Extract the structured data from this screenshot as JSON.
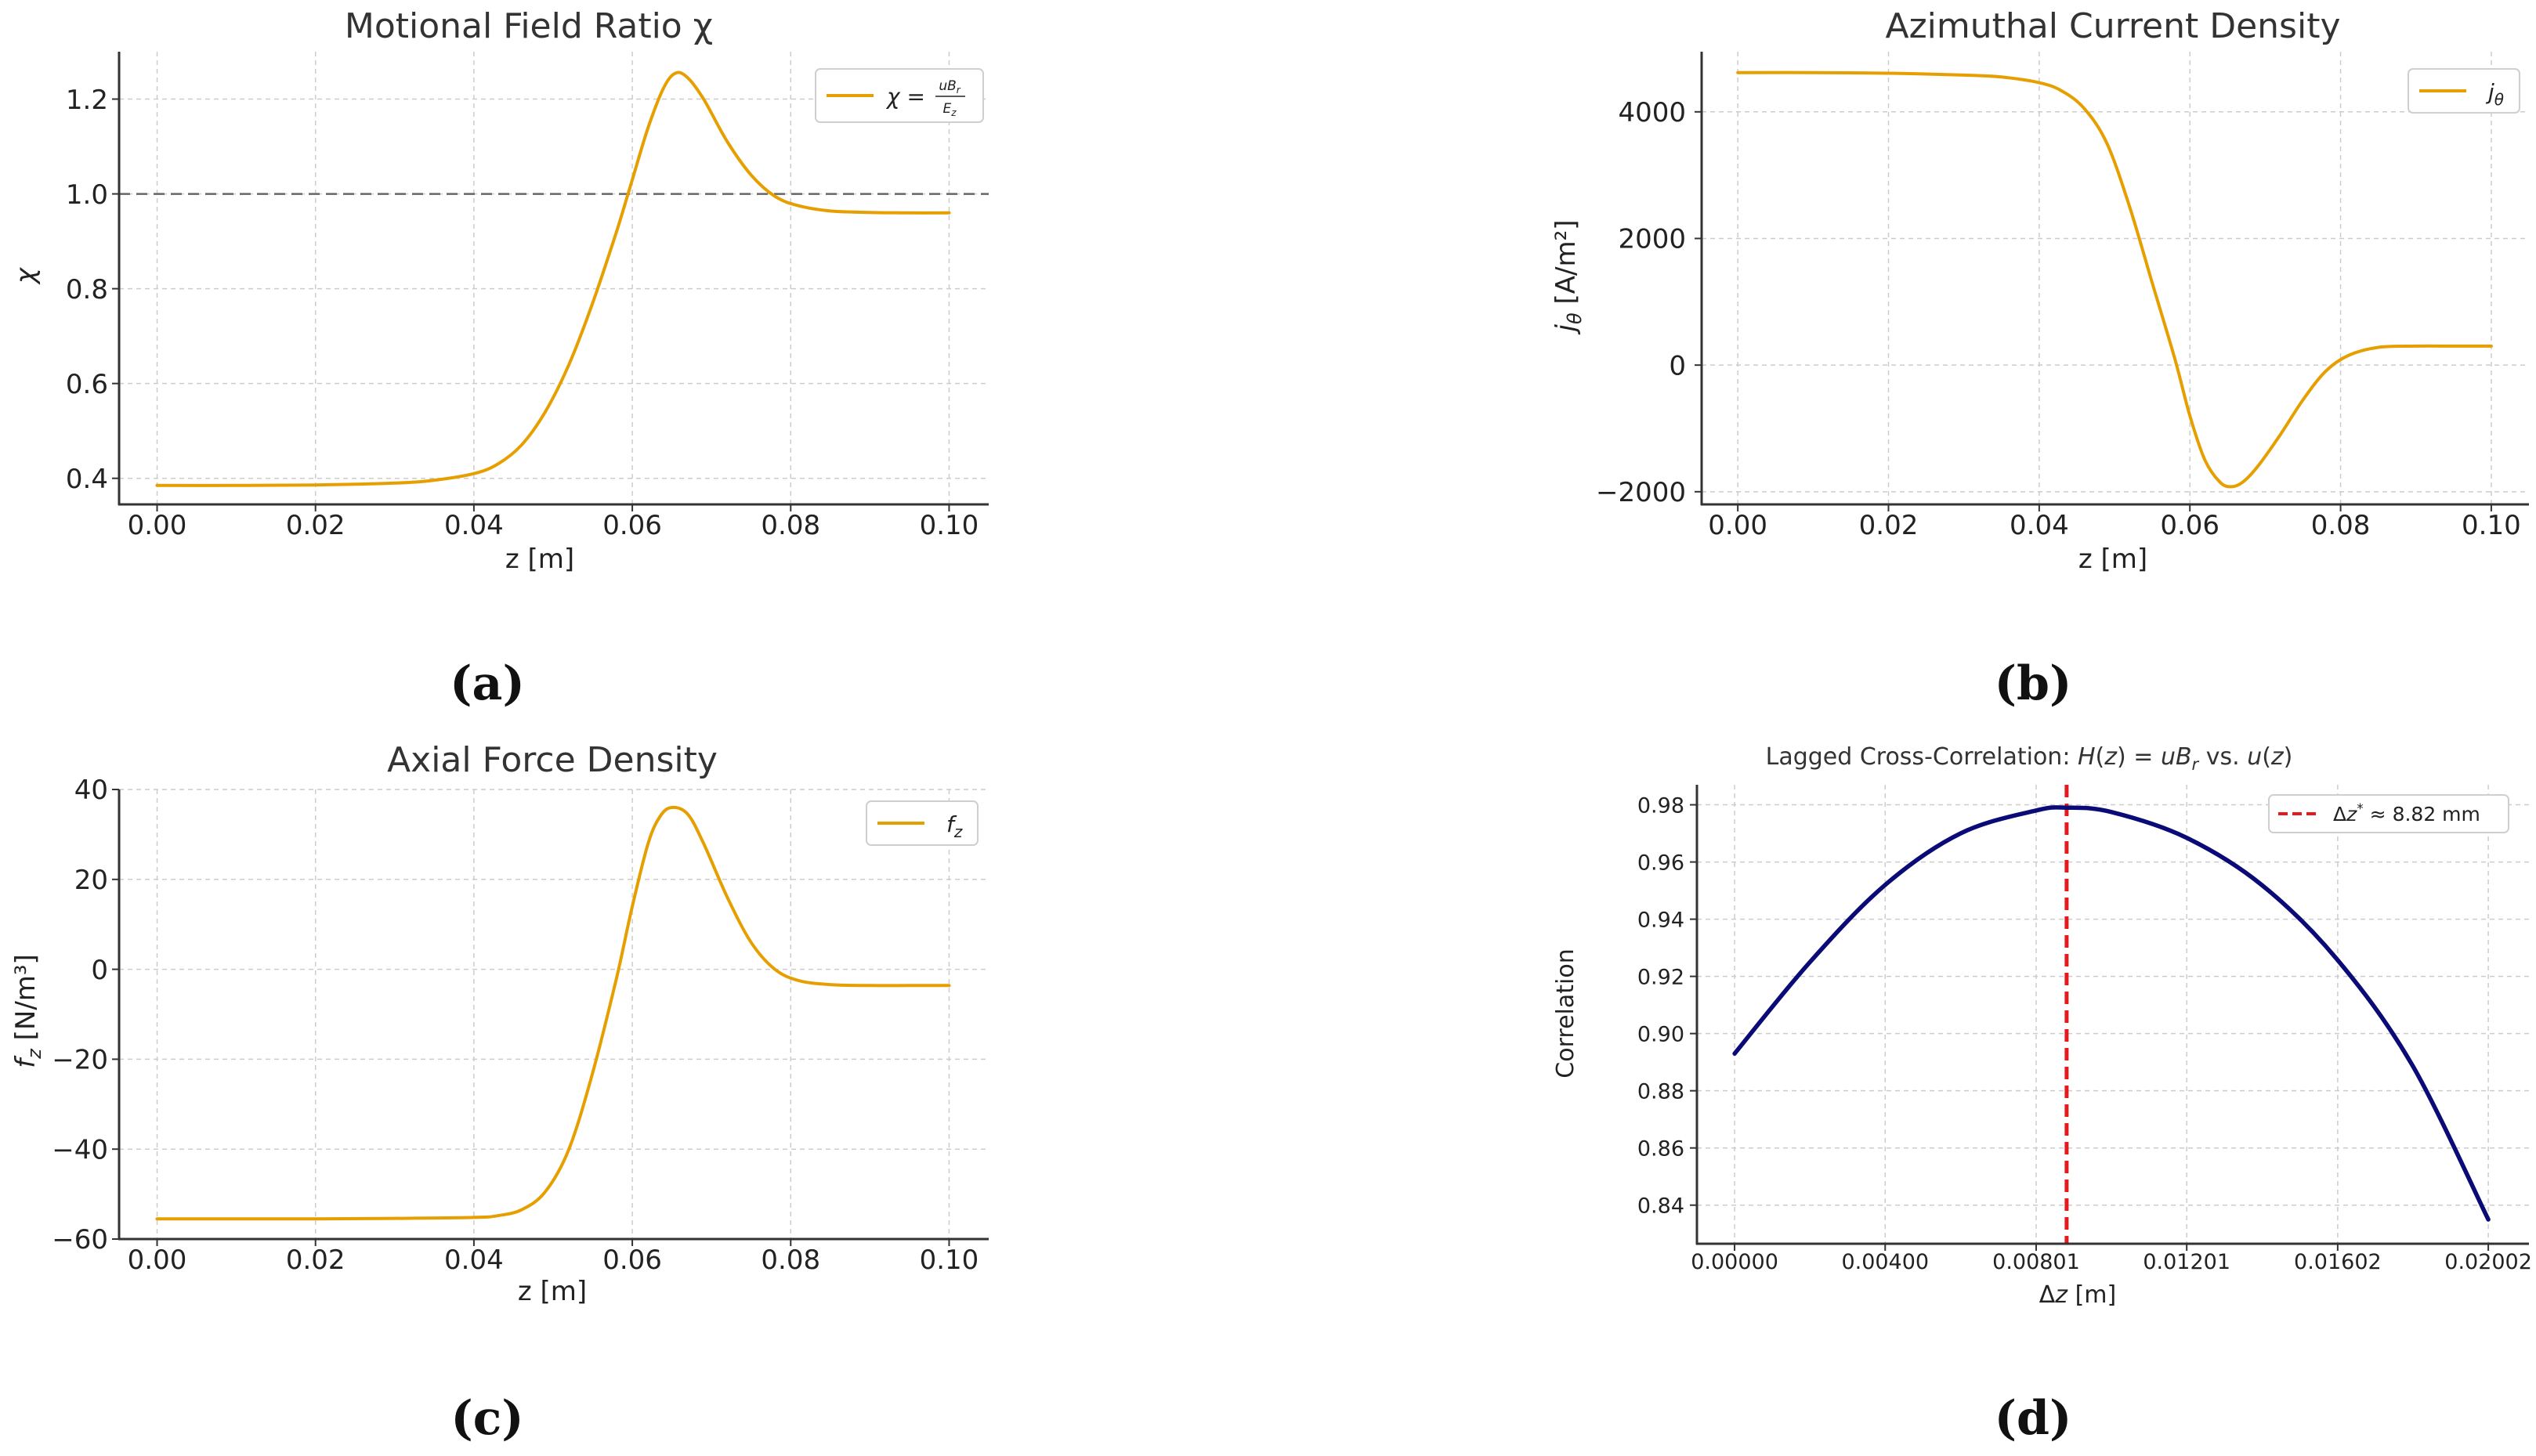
{
  "chart_data": [
    {
      "type": "line",
      "panel_label": "(a)",
      "title": "Motional Field Ratio χ",
      "xlabel": "z [m]",
      "ylabel": "χ",
      "xlim": [
        -0.0048,
        0.105
      ],
      "ylim": [
        0.345,
        1.3
      ],
      "xticks": [
        0.0,
        0.02,
        0.04,
        0.06,
        0.08,
        0.1
      ],
      "xtick_labels": [
        "0.00",
        "0.02",
        "0.04",
        "0.06",
        "0.08",
        "0.10"
      ],
      "yticks": [
        0.4,
        0.6,
        0.8,
        1.0,
        1.2
      ],
      "ytick_labels": [
        "0.4",
        "0.6",
        "0.8",
        "1.0",
        "1.2"
      ],
      "reference_line": {
        "y": 1.0,
        "style": "dashed",
        "color": "#666666"
      },
      "legend": {
        "position": "top-right"
      },
      "series": [
        {
          "name": "χ = uB_r / E_z",
          "legend_text": {
            "lhs": "χ = ",
            "num": "uB",
            "num_sub": "r",
            "den": "E",
            "den_sub": "z"
          },
          "color": "#E69F00",
          "x": [
            0.0,
            0.01,
            0.02,
            0.03,
            0.035,
            0.04,
            0.043,
            0.046,
            0.049,
            0.052,
            0.055,
            0.058,
            0.06,
            0.062,
            0.064,
            0.0655,
            0.067,
            0.069,
            0.072,
            0.075,
            0.078,
            0.081,
            0.085,
            0.09,
            0.095,
            0.1
          ],
          "y": [
            0.385,
            0.385,
            0.386,
            0.39,
            0.396,
            0.41,
            0.43,
            0.47,
            0.54,
            0.64,
            0.77,
            0.92,
            1.03,
            1.14,
            1.225,
            1.255,
            1.245,
            1.2,
            1.11,
            1.04,
            0.995,
            0.975,
            0.964,
            0.961,
            0.96,
            0.96
          ]
        }
      ]
    },
    {
      "type": "line",
      "panel_label": "(b)",
      "title": "Azimuthal Current Density",
      "xlabel": "z [m]",
      "ylabel": "j_θ [A/m²]",
      "xlim": [
        -0.0048,
        0.105
      ],
      "ylim": [
        -2200,
        4950
      ],
      "xticks": [
        0.0,
        0.02,
        0.04,
        0.06,
        0.08,
        0.1
      ],
      "xtick_labels": [
        "0.00",
        "0.02",
        "0.04",
        "0.06",
        "0.08",
        "0.10"
      ],
      "yticks": [
        -2000,
        0,
        2000,
        4000
      ],
      "ytick_labels": [
        "−2000",
        "0",
        "2000",
        "4000"
      ],
      "legend": {
        "position": "top-right"
      },
      "series": [
        {
          "name": "j_θ",
          "legend_text": {
            "sym": "j",
            "sub": "θ"
          },
          "color": "#E69F00",
          "x": [
            0.0,
            0.01,
            0.02,
            0.03,
            0.035,
            0.04,
            0.043,
            0.046,
            0.049,
            0.052,
            0.055,
            0.058,
            0.06,
            0.062,
            0.064,
            0.0655,
            0.067,
            0.069,
            0.072,
            0.075,
            0.078,
            0.081,
            0.085,
            0.09,
            0.095,
            0.1
          ],
          "y": [
            4620,
            4620,
            4610,
            4580,
            4550,
            4460,
            4330,
            4050,
            3500,
            2500,
            1300,
            100,
            -800,
            -1500,
            -1850,
            -1920,
            -1850,
            -1600,
            -1100,
            -550,
            -100,
            150,
            280,
            300,
            300,
            300
          ]
        }
      ]
    },
    {
      "type": "line",
      "panel_label": "(c)",
      "title": "Axial Force Density",
      "xlabel": "z [m]",
      "ylabel": "f_z [N/m³]",
      "xlim": [
        -0.0048,
        0.105
      ],
      "ylim": [
        -60,
        40
      ],
      "xticks": [
        0.0,
        0.02,
        0.04,
        0.06,
        0.08,
        0.1
      ],
      "xtick_labels": [
        "0.00",
        "0.02",
        "0.04",
        "0.06",
        "0.08",
        "0.10"
      ],
      "yticks": [
        -60,
        -40,
        -20,
        0,
        20,
        40
      ],
      "ytick_labels": [
        "−60",
        "−40",
        "−20",
        "0",
        "20",
        "40"
      ],
      "legend": {
        "position": "top-right"
      },
      "series": [
        {
          "name": "f_z",
          "legend_text": {
            "sym": "f",
            "sub": "z"
          },
          "color": "#E69F00",
          "x": [
            0.0,
            0.01,
            0.02,
            0.03,
            0.04,
            0.043,
            0.046,
            0.049,
            0.052,
            0.055,
            0.058,
            0.06,
            0.062,
            0.0635,
            0.065,
            0.067,
            0.069,
            0.072,
            0.075,
            0.078,
            0.081,
            0.085,
            0.09,
            0.095,
            0.1
          ],
          "y": [
            -55.5,
            -55.5,
            -55.5,
            -55.4,
            -55.2,
            -54.8,
            -53.5,
            -49.5,
            -40,
            -23,
            -2,
            14,
            28,
            34,
            36,
            34.5,
            28,
            16,
            6,
            0,
            -2.5,
            -3.4,
            -3.6,
            -3.6,
            -3.6
          ]
        }
      ]
    },
    {
      "type": "line",
      "panel_label": "(d)",
      "title": "Lagged Cross-Correlation: H(z) = uB_r vs. u(z)",
      "title_parts": {
        "prefix": "Lagged Cross-Correlation: ",
        "h": "H",
        "z": "z",
        "eq": " = ",
        "ub": "uB",
        "ub_sub": "r",
        "vs": " vs. ",
        "u": "u"
      },
      "xlabel": "Δz [m]",
      "ylabel": "Correlation",
      "xlim": [
        -0.001,
        0.0211
      ],
      "ylim": [
        0.8265,
        0.987
      ],
      "xticks": [
        0.0,
        0.004,
        0.00801,
        0.01201,
        0.01602,
        0.02002
      ],
      "xtick_labels": [
        "0.00000",
        "0.00400",
        "0.00801",
        "0.01201",
        "0.01602",
        "0.02002"
      ],
      "yticks": [
        0.84,
        0.86,
        0.88,
        0.9,
        0.92,
        0.94,
        0.96,
        0.98
      ],
      "ytick_labels": [
        "0.84",
        "0.86",
        "0.88",
        "0.90",
        "0.92",
        "0.94",
        "0.96",
        "0.98"
      ],
      "reference_line": {
        "x": 0.00882,
        "style": "dashed",
        "color": "#e41a1c"
      },
      "legend": {
        "position": "top-right"
      },
      "legend_entries": [
        {
          "name": "Δz* ≈ 8.82 mm",
          "sym": "Δz",
          "sup": "*",
          "rest": " ≈ 8.82 mm",
          "color": "#e41a1c",
          "style": "dashed"
        }
      ],
      "series": [
        {
          "name": "correlation",
          "color": "#0b0b78",
          "x": [
            0.0,
            0.002,
            0.004,
            0.006,
            0.008,
            0.00882,
            0.01,
            0.012,
            0.014,
            0.016,
            0.018,
            0.02002
          ],
          "y": [
            0.893,
            0.925,
            0.952,
            0.97,
            0.978,
            0.979,
            0.9775,
            0.9685,
            0.952,
            0.926,
            0.889,
            0.835
          ]
        }
      ]
    }
  ]
}
